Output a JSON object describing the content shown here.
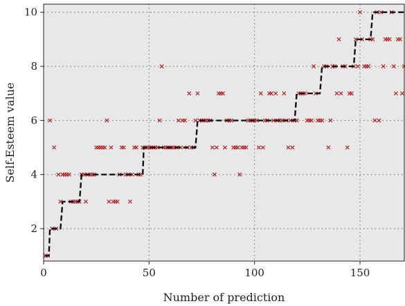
{
  "chart_data": {
    "type": "scatter",
    "title": "",
    "xlabel": "Number of prediction",
    "ylabel": "Self-Esteem value",
    "xlim": [
      0,
      171
    ],
    "ylim": [
      0.8,
      10.3
    ],
    "xticks": [
      0,
      50,
      100,
      150
    ],
    "yticks": [
      2,
      4,
      6,
      8,
      10
    ],
    "grid": true,
    "background": "#e8e8e8",
    "colors": {
      "points": "#b22222",
      "line": "#111111",
      "grid": "#666666"
    },
    "series": [
      {
        "kind": "markers-x",
        "points": [
          [
            1,
            1
          ],
          [
            2,
            1
          ],
          [
            3,
            6
          ],
          [
            4,
            2
          ],
          [
            5,
            5
          ],
          [
            6,
            2
          ],
          [
            7,
            4
          ],
          [
            8,
            3
          ],
          [
            9,
            4
          ],
          [
            10,
            4
          ],
          [
            11,
            4
          ],
          [
            12,
            4
          ],
          [
            13,
            3
          ],
          [
            14,
            3
          ],
          [
            15,
            3
          ],
          [
            16,
            3
          ],
          [
            17,
            3
          ],
          [
            18,
            4
          ],
          [
            19,
            4
          ],
          [
            20,
            3
          ],
          [
            21,
            4
          ],
          [
            22,
            4
          ],
          [
            23,
            4
          ],
          [
            24,
            4
          ],
          [
            25,
            5
          ],
          [
            26,
            5
          ],
          [
            27,
            5
          ],
          [
            28,
            5
          ],
          [
            29,
            5
          ],
          [
            30,
            6
          ],
          [
            31,
            3
          ],
          [
            32,
            5
          ],
          [
            33,
            3
          ],
          [
            34,
            3
          ],
          [
            35,
            3
          ],
          [
            36,
            4
          ],
          [
            37,
            5
          ],
          [
            38,
            5
          ],
          [
            39,
            4
          ],
          [
            40,
            4
          ],
          [
            41,
            3
          ],
          [
            42,
            4
          ],
          [
            43,
            5
          ],
          [
            44,
            5
          ],
          [
            45,
            4
          ],
          [
            46,
            4
          ],
          [
            47,
            5
          ],
          [
            48,
            5
          ],
          [
            49,
            5
          ],
          [
            50,
            5
          ],
          [
            51,
            5
          ],
          [
            52,
            5
          ],
          [
            53,
            5
          ],
          [
            54,
            5
          ],
          [
            55,
            6
          ],
          [
            56,
            8
          ],
          [
            57,
            5
          ],
          [
            58,
            5
          ],
          [
            59,
            5
          ],
          [
            60,
            5
          ],
          [
            61,
            5
          ],
          [
            62,
            5
          ],
          [
            63,
            5
          ],
          [
            64,
            6
          ],
          [
            65,
            5
          ],
          [
            66,
            6
          ],
          [
            67,
            6
          ],
          [
            68,
            5
          ],
          [
            69,
            7
          ],
          [
            70,
            5
          ],
          [
            71,
            5
          ],
          [
            72,
            6
          ],
          [
            73,
            7
          ],
          [
            74,
            6
          ],
          [
            75,
            6
          ],
          [
            76,
            6
          ],
          [
            77,
            6
          ],
          [
            78,
            6
          ],
          [
            79,
            6
          ],
          [
            80,
            5
          ],
          [
            81,
            4
          ],
          [
            82,
            5
          ],
          [
            83,
            7
          ],
          [
            84,
            7
          ],
          [
            85,
            7
          ],
          [
            86,
            5
          ],
          [
            87,
            6
          ],
          [
            88,
            6
          ],
          [
            89,
            6
          ],
          [
            90,
            5
          ],
          [
            91,
            5
          ],
          [
            92,
            5
          ],
          [
            93,
            4
          ],
          [
            94,
            5
          ],
          [
            95,
            5
          ],
          [
            96,
            5
          ],
          [
            97,
            6
          ],
          [
            98,
            6
          ],
          [
            99,
            6
          ],
          [
            100,
            6
          ],
          [
            101,
            6
          ],
          [
            102,
            5
          ],
          [
            103,
            7
          ],
          [
            104,
            5
          ],
          [
            105,
            6
          ],
          [
            106,
            6
          ],
          [
            107,
            7
          ],
          [
            108,
            7
          ],
          [
            109,
            6
          ],
          [
            110,
            7
          ],
          [
            111,
            6
          ],
          [
            112,
            6
          ],
          [
            113,
            6
          ],
          [
            114,
            7
          ],
          [
            115,
            6
          ],
          [
            116,
            5
          ],
          [
            117,
            6
          ],
          [
            118,
            5
          ],
          [
            119,
            6
          ],
          [
            120,
            6
          ],
          [
            121,
            7
          ],
          [
            122,
            7
          ],
          [
            123,
            7
          ],
          [
            124,
            7
          ],
          [
            125,
            6
          ],
          [
            126,
            6
          ],
          [
            127,
            6
          ],
          [
            128,
            8
          ],
          [
            129,
            7
          ],
          [
            130,
            6
          ],
          [
            131,
            6
          ],
          [
            132,
            6
          ],
          [
            133,
            8
          ],
          [
            134,
            8
          ],
          [
            135,
            5
          ],
          [
            136,
            6
          ],
          [
            137,
            8
          ],
          [
            138,
            8
          ],
          [
            139,
            7
          ],
          [
            140,
            9
          ],
          [
            141,
            7
          ],
          [
            142,
            8
          ],
          [
            143,
            8
          ],
          [
            144,
            5
          ],
          [
            145,
            7
          ],
          [
            146,
            7
          ],
          [
            147,
            8
          ],
          [
            148,
            9
          ],
          [
            149,
            8
          ],
          [
            150,
            10
          ],
          [
            151,
            9
          ],
          [
            152,
            8
          ],
          [
            153,
            8
          ],
          [
            154,
            8
          ],
          [
            155,
            9
          ],
          [
            156,
            9
          ],
          [
            157,
            6
          ],
          [
            158,
            10
          ],
          [
            159,
            6
          ],
          [
            160,
            10
          ],
          [
            161,
            8
          ],
          [
            162,
            9
          ],
          [
            163,
            9
          ],
          [
            164,
            9
          ],
          [
            165,
            10
          ],
          [
            166,
            8
          ],
          [
            167,
            7
          ],
          [
            168,
            9
          ],
          [
            169,
            9
          ],
          [
            170,
            7
          ],
          [
            171,
            8
          ]
        ]
      },
      {
        "kind": "dashed-step-line",
        "points": [
          [
            0.5,
            1
          ],
          [
            2.5,
            1
          ],
          [
            3,
            2
          ],
          [
            8,
            2
          ],
          [
            9,
            3
          ],
          [
            17,
            3
          ],
          [
            18,
            4
          ],
          [
            33,
            4
          ],
          [
            47,
            4
          ],
          [
            47.5,
            5
          ],
          [
            72,
            5
          ],
          [
            73,
            6
          ],
          [
            100,
            6
          ],
          [
            119,
            6
          ],
          [
            120,
            7
          ],
          [
            131,
            7
          ],
          [
            132,
            8
          ],
          [
            147,
            8
          ],
          [
            148,
            9
          ],
          [
            155,
            9
          ],
          [
            156,
            10
          ],
          [
            171,
            10
          ]
        ]
      }
    ]
  }
}
